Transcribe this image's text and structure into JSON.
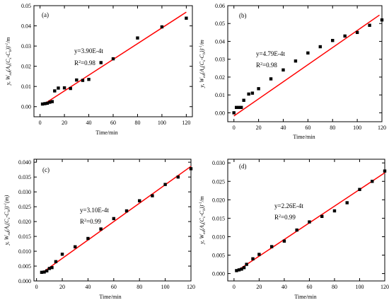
{
  "chart_data": [
    {
      "type": "scatter",
      "panel_label": "(a)",
      "xlabel": "Time/min",
      "ylabel_parts": [
        "y, W",
        "ed",
        "(A",
        "s",
        "(C",
        "s",
        "-C",
        "b",
        "))",
        "-1",
        "/m"
      ],
      "equation": "y=3.90E-4t",
      "r2_label": "R",
      "r2_sup": "2",
      "r2_value": "=0.98",
      "xlim": [
        -5,
        125
      ],
      "ylim": [
        -0.005,
        0.05
      ],
      "xticks": [
        0,
        20,
        40,
        60,
        80,
        100,
        120
      ],
      "yticks": [
        0.0,
        0.01,
        0.02,
        0.03,
        0.04,
        0.05
      ],
      "ytick_labels": [
        "0.00",
        "0.01",
        "0.02",
        "0.03",
        "0.04",
        "0.05"
      ],
      "fit": {
        "slope": 0.00039,
        "intercept": 0.0,
        "x_range": [
          3,
          120
        ],
        "color": "#ff0000"
      },
      "marker_color": "#000000",
      "points": [
        [
          2,
          0.0013
        ],
        [
          4,
          0.0015
        ],
        [
          6,
          0.0017
        ],
        [
          8,
          0.0022
        ],
        [
          10,
          0.0025
        ],
        [
          12,
          0.0078
        ],
        [
          15,
          0.0092
        ],
        [
          20,
          0.0093
        ],
        [
          25,
          0.009
        ],
        [
          30,
          0.0132
        ],
        [
          35,
          0.013
        ],
        [
          40,
          0.0135
        ],
        [
          50,
          0.0218
        ],
        [
          60,
          0.0237
        ],
        [
          80,
          0.034
        ],
        [
          100,
          0.0395
        ],
        [
          120,
          0.0438
        ]
      ]
    },
    {
      "type": "scatter",
      "panel_label": "(b)",
      "xlabel": "Time/min",
      "ylabel_parts": [
        "y, W",
        "ed",
        "(A",
        "s",
        "(C",
        "s",
        "-C",
        "b",
        "))",
        "-1",
        "/m"
      ],
      "equation": "y=4.79E-4t",
      "r2_label": "R",
      "r2_sup": "2",
      "r2_value": "=0.98",
      "xlim": [
        -5,
        120
      ],
      "ylim": [
        -0.005,
        0.06
      ],
      "xticks": [
        0,
        20,
        40,
        60,
        80,
        100,
        120
      ],
      "yticks": [
        0.0,
        0.01,
        0.02,
        0.03,
        0.04,
        0.05,
        0.06
      ],
      "ytick_labels": [
        "0.00",
        "0.01",
        "0.02",
        "0.03",
        "0.04",
        "0.05",
        "0.06"
      ],
      "fit": {
        "slope": 0.000479,
        "intercept": -0.0018,
        "x_range": [
          0,
          118
        ],
        "color": "#ff0000"
      },
      "marker_color": "#000000",
      "points": [
        [
          0,
          0.0
        ],
        [
          2,
          0.003
        ],
        [
          4,
          0.003
        ],
        [
          6,
          0.003
        ],
        [
          8,
          0.007
        ],
        [
          12,
          0.0105
        ],
        [
          15,
          0.011
        ],
        [
          20,
          0.0135
        ],
        [
          30,
          0.019
        ],
        [
          40,
          0.024
        ],
        [
          50,
          0.029
        ],
        [
          60,
          0.0335
        ],
        [
          70,
          0.037
        ],
        [
          80,
          0.0405
        ],
        [
          90,
          0.043
        ],
        [
          100,
          0.045
        ],
        [
          110,
          0.049
        ],
        [
          120,
          0.052
        ]
      ]
    },
    {
      "type": "scatter",
      "panel_label": "(c)",
      "xlabel": "Time/min",
      "ylabel_parts": [
        "y, W",
        "ed",
        "(A",
        "s",
        "(C",
        "s",
        "-C",
        "b",
        "))",
        "-1",
        "(m)"
      ],
      "equation": "y=3.10E-4t",
      "r2_label": "R",
      "r2_sup": "2",
      "r2_value": "=0.99",
      "xlim": [
        -2,
        120
      ],
      "ylim": [
        0.0,
        0.041
      ],
      "xticks": [
        0,
        20,
        40,
        60,
        80,
        100,
        120
      ],
      "yticks": [
        0.0,
        0.005,
        0.01,
        0.015,
        0.02,
        0.025,
        0.03,
        0.035,
        0.04
      ],
      "ytick_labels": [
        "0.000",
        "0.005",
        "0.010",
        "0.015",
        "0.020",
        "0.025",
        "0.030",
        "0.035",
        "0.040"
      ],
      "fit": {
        "slope": 0.00031,
        "intercept": 0.0014,
        "x_range": [
          4,
          120
        ],
        "color": "#ff0000"
      },
      "marker_color": "#000000",
      "points": [
        [
          4,
          0.0029
        ],
        [
          6,
          0.003
        ],
        [
          8,
          0.0034
        ],
        [
          10,
          0.0042
        ],
        [
          12,
          0.0045
        ],
        [
          15,
          0.0065
        ],
        [
          20,
          0.009
        ],
        [
          30,
          0.0115
        ],
        [
          40,
          0.0143
        ],
        [
          50,
          0.0175
        ],
        [
          60,
          0.021
        ],
        [
          70,
          0.0236
        ],
        [
          80,
          0.027
        ],
        [
          90,
          0.0287
        ],
        [
          100,
          0.0325
        ],
        [
          110,
          0.035
        ],
        [
          120,
          0.0378
        ]
      ]
    },
    {
      "type": "scatter",
      "panel_label": "(d)",
      "xlabel": "Time/min",
      "ylabel_parts": [
        "y, W",
        "ed",
        "(A",
        "s",
        "(C",
        "s",
        "-C",
        "b",
        "))",
        "-1",
        "/m"
      ],
      "equation": "y=2.26E-4t",
      "r2_label": "R",
      "r2_sup": "2",
      "r2_value": "=0.99",
      "xlim": [
        -5,
        120
      ],
      "ylim": [
        -0.002,
        0.031
      ],
      "xticks": [
        0,
        20,
        40,
        60,
        80,
        100,
        120
      ],
      "yticks": [
        0.0,
        0.005,
        0.01,
        0.015,
        0.02,
        0.025,
        0.03
      ],
      "ytick_labels": [
        "0.000",
        "0.005",
        "0.010",
        "0.015",
        "0.020",
        "0.025",
        "0.030"
      ],
      "fit": {
        "slope": 0.000226,
        "intercept": 0.0002,
        "x_range": [
          2,
          120
        ],
        "color": "#ff0000"
      },
      "marker_color": "#000000",
      "points": [
        [
          2,
          0.0008
        ],
        [
          4,
          0.001
        ],
        [
          6,
          0.0012
        ],
        [
          8,
          0.0016
        ],
        [
          10,
          0.0025
        ],
        [
          15,
          0.004
        ],
        [
          20,
          0.0052
        ],
        [
          30,
          0.0073
        ],
        [
          40,
          0.0088
        ],
        [
          50,
          0.0118
        ],
        [
          60,
          0.014
        ],
        [
          70,
          0.0155
        ],
        [
          80,
          0.017
        ],
        [
          90,
          0.0192
        ],
        [
          100,
          0.0228
        ],
        [
          110,
          0.025
        ],
        [
          120,
          0.0278
        ]
      ]
    }
  ]
}
